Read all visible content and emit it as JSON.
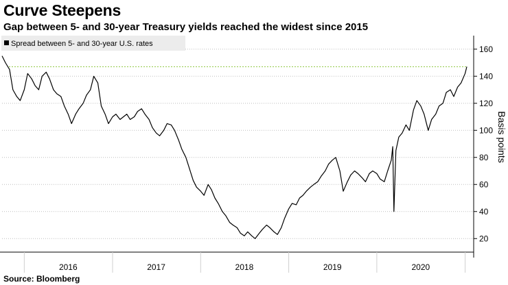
{
  "title": "Curve Steepens",
  "subtitle": "Gap between 5- and 30-year Treasury yields reached the widest since 2015",
  "source": "Source: Bloomberg",
  "chart_data": {
    "type": "line",
    "ylabel": "Basis points",
    "ylim": [
      10,
      170
    ],
    "y_ticks": [
      20,
      40,
      60,
      80,
      100,
      120,
      140,
      160
    ],
    "x_range": [
      "2015-10-01",
      "2021-01-08"
    ],
    "x_ticks": [
      "2016",
      "2017",
      "2018",
      "2019",
      "2020"
    ],
    "x_tick_positions": [
      "2016-07-01",
      "2017-07-01",
      "2018-07-01",
      "2019-07-01",
      "2020-07-01"
    ],
    "grid": "horizontal-dotted",
    "legend": {
      "placement": "top-left",
      "entries": [
        "Spread between 5- and 30-year U.S. rates"
      ]
    },
    "reference_line": {
      "value": 147,
      "color": "#8cc63f",
      "style": "dotted"
    },
    "series": [
      {
        "name": "Spread between 5- and 30-year U.S. rates",
        "color": "#000000",
        "points": [
          [
            "2015-10-01",
            155
          ],
          [
            "2015-10-15",
            150
          ],
          [
            "2015-11-01",
            145
          ],
          [
            "2015-11-15",
            130
          ],
          [
            "2015-12-01",
            125
          ],
          [
            "2015-12-15",
            122
          ],
          [
            "2016-01-01",
            130
          ],
          [
            "2016-01-15",
            142
          ],
          [
            "2016-02-01",
            138
          ],
          [
            "2016-02-15",
            133
          ],
          [
            "2016-03-01",
            130
          ],
          [
            "2016-03-15",
            140
          ],
          [
            "2016-04-01",
            143
          ],
          [
            "2016-04-15",
            138
          ],
          [
            "2016-05-01",
            130
          ],
          [
            "2016-05-15",
            127
          ],
          [
            "2016-06-01",
            125
          ],
          [
            "2016-06-15",
            118
          ],
          [
            "2016-07-01",
            112
          ],
          [
            "2016-07-15",
            105
          ],
          [
            "2016-08-01",
            112
          ],
          [
            "2016-08-15",
            116
          ],
          [
            "2016-09-01",
            120
          ],
          [
            "2016-09-15",
            126
          ],
          [
            "2016-10-01",
            130
          ],
          [
            "2016-10-15",
            140
          ],
          [
            "2016-11-01",
            135
          ],
          [
            "2016-11-15",
            118
          ],
          [
            "2016-12-01",
            112
          ],
          [
            "2016-12-15",
            105
          ],
          [
            "2017-01-01",
            110
          ],
          [
            "2017-01-15",
            112
          ],
          [
            "2017-02-01",
            108
          ],
          [
            "2017-02-15",
            110
          ],
          [
            "2017-03-01",
            112
          ],
          [
            "2017-03-15",
            108
          ],
          [
            "2017-04-01",
            110
          ],
          [
            "2017-04-15",
            114
          ],
          [
            "2017-05-01",
            116
          ],
          [
            "2017-05-15",
            112
          ],
          [
            "2017-06-01",
            108
          ],
          [
            "2017-06-15",
            102
          ],
          [
            "2017-07-01",
            98
          ],
          [
            "2017-07-15",
            96
          ],
          [
            "2017-08-01",
            100
          ],
          [
            "2017-08-15",
            105
          ],
          [
            "2017-09-01",
            104
          ],
          [
            "2017-09-15",
            100
          ],
          [
            "2017-10-01",
            93
          ],
          [
            "2017-10-15",
            86
          ],
          [
            "2017-11-01",
            80
          ],
          [
            "2017-11-15",
            72
          ],
          [
            "2017-12-01",
            63
          ],
          [
            "2017-12-15",
            58
          ],
          [
            "2018-01-01",
            55
          ],
          [
            "2018-01-15",
            52
          ],
          [
            "2018-02-01",
            60
          ],
          [
            "2018-02-15",
            56
          ],
          [
            "2018-03-01",
            50
          ],
          [
            "2018-03-15",
            46
          ],
          [
            "2018-04-01",
            40
          ],
          [
            "2018-04-15",
            37
          ],
          [
            "2018-05-01",
            32
          ],
          [
            "2018-05-15",
            30
          ],
          [
            "2018-06-01",
            28
          ],
          [
            "2018-06-15",
            24
          ],
          [
            "2018-07-01",
            22
          ],
          [
            "2018-07-15",
            25
          ],
          [
            "2018-08-01",
            22
          ],
          [
            "2018-08-15",
            20
          ],
          [
            "2018-09-01",
            24
          ],
          [
            "2018-09-15",
            27
          ],
          [
            "2018-10-01",
            30
          ],
          [
            "2018-10-15",
            28
          ],
          [
            "2018-11-01",
            25
          ],
          [
            "2018-11-15",
            23
          ],
          [
            "2018-12-01",
            28
          ],
          [
            "2018-12-15",
            35
          ],
          [
            "2019-01-01",
            42
          ],
          [
            "2019-01-15",
            46
          ],
          [
            "2019-02-01",
            45
          ],
          [
            "2019-02-15",
            50
          ],
          [
            "2019-03-01",
            52
          ],
          [
            "2019-03-15",
            55
          ],
          [
            "2019-04-01",
            58
          ],
          [
            "2019-04-15",
            60
          ],
          [
            "2019-05-01",
            62
          ],
          [
            "2019-05-15",
            66
          ],
          [
            "2019-06-01",
            70
          ],
          [
            "2019-06-15",
            75
          ],
          [
            "2019-07-01",
            78
          ],
          [
            "2019-07-15",
            80
          ],
          [
            "2019-08-01",
            70
          ],
          [
            "2019-08-15",
            55
          ],
          [
            "2019-09-01",
            62
          ],
          [
            "2019-09-15",
            67
          ],
          [
            "2019-10-01",
            70
          ],
          [
            "2019-10-15",
            68
          ],
          [
            "2019-11-01",
            65
          ],
          [
            "2019-11-15",
            62
          ],
          [
            "2019-12-01",
            68
          ],
          [
            "2019-12-15",
            70
          ],
          [
            "2020-01-01",
            68
          ],
          [
            "2020-01-15",
            64
          ],
          [
            "2020-02-01",
            62
          ],
          [
            "2020-02-15",
            70
          ],
          [
            "2020-03-01",
            78
          ],
          [
            "2020-03-07",
            88
          ],
          [
            "2020-03-12",
            40
          ],
          [
            "2020-03-20",
            85
          ],
          [
            "2020-04-01",
            95
          ],
          [
            "2020-04-15",
            98
          ],
          [
            "2020-05-01",
            104
          ],
          [
            "2020-05-15",
            100
          ],
          [
            "2020-06-01",
            115
          ],
          [
            "2020-06-15",
            122
          ],
          [
            "2020-07-01",
            118
          ],
          [
            "2020-07-15",
            112
          ],
          [
            "2020-08-01",
            100
          ],
          [
            "2020-08-15",
            108
          ],
          [
            "2020-09-01",
            112
          ],
          [
            "2020-09-15",
            118
          ],
          [
            "2020-10-01",
            120
          ],
          [
            "2020-10-15",
            128
          ],
          [
            "2020-11-01",
            130
          ],
          [
            "2020-11-15",
            125
          ],
          [
            "2020-12-01",
            132
          ],
          [
            "2020-12-15",
            135
          ],
          [
            "2021-01-01",
            142
          ],
          [
            "2021-01-08",
            147
          ]
        ]
      }
    ]
  }
}
